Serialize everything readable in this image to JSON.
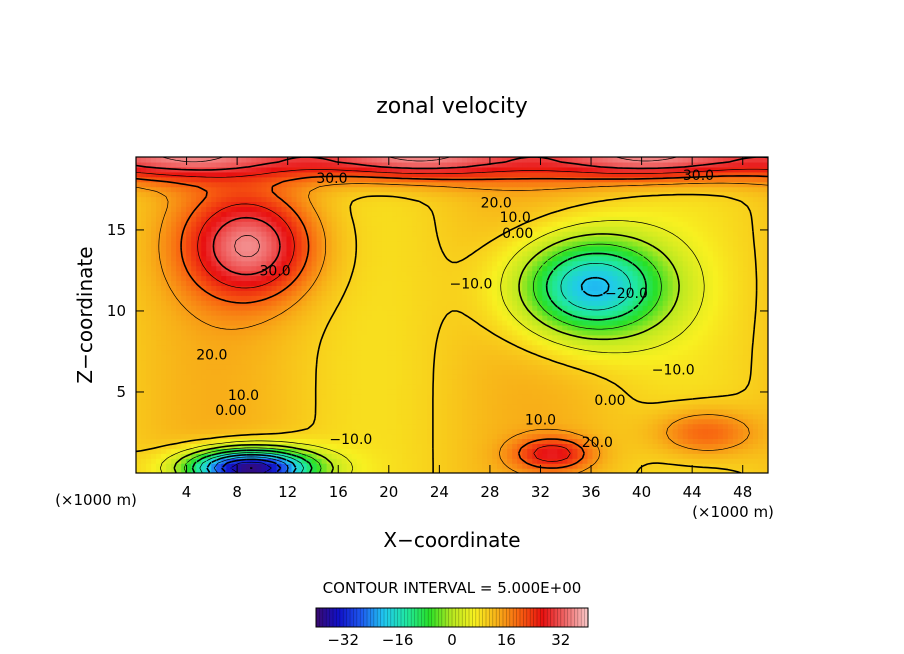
{
  "chart_data": {
    "type": "heatmap",
    "title": "zonal velocity",
    "xlabel": "X−coordinate",
    "ylabel": "Z−coordinate",
    "x_unit": "(×1000 m)",
    "x_unit_right": "(×1000 m)",
    "xlim": [
      0,
      50
    ],
    "ylim": [
      0,
      19.5
    ],
    "x_ticks": [
      4,
      8,
      12,
      16,
      20,
      24,
      28,
      32,
      36,
      40,
      44,
      48
    ],
    "y_ticks": [
      5,
      10,
      15
    ],
    "contour_interval_text": "CONTOUR INTERVAL = 5.000E+00",
    "colorbar": {
      "min": -40,
      "max": 40,
      "ticks": [
        -32,
        -16,
        0,
        16,
        32
      ],
      "tick_labels": [
        "−32",
        "−16",
        "0",
        "16",
        "32"
      ],
      "colors": [
        "#3a0a6e",
        "#1010c8",
        "#1e5af0",
        "#20c8f0",
        "#20e8a0",
        "#28e028",
        "#b8e820",
        "#f8f020",
        "#f8b018",
        "#f86010",
        "#e81010",
        "#f06868",
        "#f8c8c8"
      ]
    },
    "field_features": [
      {
        "name": "upper-left jet",
        "x": 9,
        "z": 14,
        "value": 34,
        "sx": 5,
        "sz": 3.2
      },
      {
        "name": "central negative core",
        "x": 36,
        "z": 11.5,
        "value": -22,
        "sx": 6,
        "sz": 3.2
      },
      {
        "name": "bottom-left reverse flow",
        "x": 9,
        "z": 0.3,
        "value": -42,
        "sx": 5,
        "sz": 1.2
      },
      {
        "name": "lower-center jet",
        "x": 33,
        "z": 1.2,
        "value": 26,
        "sx": 3,
        "sz": 1.0
      },
      {
        "name": "lower-right jet",
        "x": 45,
        "z": 2.5,
        "value": 22,
        "sx": 4,
        "sz": 1.5
      }
    ],
    "contour_labels": [
      {
        "text": "30.0",
        "x": 15.5,
        "z": 18.2
      },
      {
        "text": "30.0",
        "x": 44.5,
        "z": 18.4
      },
      {
        "text": "20.0",
        "x": 28.5,
        "z": 16.7
      },
      {
        "text": "10.0",
        "x": 30,
        "z": 15.8
      },
      {
        "text": "0.00",
        "x": 30.2,
        "z": 14.8
      },
      {
        "text": "30.0",
        "x": 11,
        "z": 12.5
      },
      {
        "text": "−10.0",
        "x": 26.5,
        "z": 11.7
      },
      {
        "text": "−20.0",
        "x": 38.8,
        "z": 11.1
      },
      {
        "text": "20.0",
        "x": 6,
        "z": 7.3
      },
      {
        "text": "−10.0",
        "x": 42.5,
        "z": 6.4
      },
      {
        "text": "10.0",
        "x": 8.5,
        "z": 4.8
      },
      {
        "text": "0.00",
        "x": 7.5,
        "z": 3.9
      },
      {
        "text": "0.00",
        "x": 37.5,
        "z": 4.5
      },
      {
        "text": "10.0",
        "x": 32,
        "z": 3.3
      },
      {
        "text": "−10.0",
        "x": 17,
        "z": 2.1
      },
      {
        "text": "20.0",
        "x": 36.5,
        "z": 1.9
      }
    ]
  }
}
